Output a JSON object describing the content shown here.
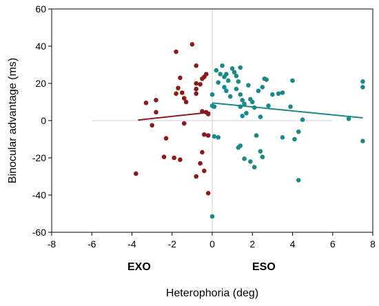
{
  "chart_data": {
    "type": "scatter",
    "title": "",
    "xlabel": "Heterophoria (deg)",
    "ylabel": "Binocular advantage (ms)",
    "xlim": [
      -8,
      8
    ],
    "ylim": [
      -60,
      60
    ],
    "xticks": [
      "-8",
      "-6",
      "-4",
      "-2",
      "0",
      "2",
      "4",
      "6",
      "8"
    ],
    "yticks": [
      "60",
      "40",
      "20",
      "0",
      "-20",
      "-40",
      "-60"
    ],
    "annotations": [
      "EXO",
      "ESO"
    ],
    "grid": false,
    "series": [
      {
        "group": "EXO",
        "color": "#8b1a1a",
        "points": [
          [
            -3.8,
            -28.5
          ],
          [
            -3.3,
            9.5
          ],
          [
            -3.0,
            -2.5
          ],
          [
            -2.8,
            11.0
          ],
          [
            -2.8,
            4.5
          ],
          [
            -2.3,
            -9.5
          ],
          [
            -2.4,
            -19.5
          ],
          [
            -1.9,
            -20.0
          ],
          [
            -1.6,
            -21.0
          ],
          [
            -1.4,
            -1.5
          ],
          [
            -1.8,
            37.0
          ],
          [
            -1.7,
            17.5
          ],
          [
            -1.8,
            14.5
          ],
          [
            -1.6,
            23.0
          ],
          [
            -1.5,
            15.0
          ],
          [
            -1.4,
            12.0
          ],
          [
            -1.3,
            10.0
          ],
          [
            -1.0,
            41.0
          ],
          [
            -0.8,
            29.5
          ],
          [
            -0.8,
            20.0
          ],
          [
            -0.8,
            17.0
          ],
          [
            -0.8,
            14.5
          ],
          [
            -0.6,
            19.5
          ],
          [
            -0.5,
            22.5
          ],
          [
            -0.4,
            23.5
          ],
          [
            -0.3,
            25.0
          ],
          [
            -0.5,
            5.0
          ],
          [
            -0.3,
            4.5
          ],
          [
            -0.2,
            3.5
          ],
          [
            -0.4,
            -7.5
          ],
          [
            -0.2,
            -8.0
          ],
          [
            -0.5,
            -17.0
          ],
          [
            -0.6,
            -23.0
          ],
          [
            -0.4,
            -27.0
          ],
          [
            -0.8,
            -30.0
          ],
          [
            -0.2,
            -39.0
          ]
        ],
        "trend": [
          [
            -3.7,
            0.3
          ],
          [
            -0.1,
            4.5
          ]
        ]
      },
      {
        "group": "ESO",
        "color": "#1a8a88",
        "points": [
          [
            0.0,
            8.0
          ],
          [
            0.1,
            7.5
          ],
          [
            0.0,
            14.0
          ],
          [
            0.2,
            27.0
          ],
          [
            0.4,
            25.0
          ],
          [
            0.3,
            20.5
          ],
          [
            0.5,
            29.5
          ],
          [
            0.6,
            23.5
          ],
          [
            0.7,
            25.0
          ],
          [
            0.6,
            18.0
          ],
          [
            0.8,
            21.5
          ],
          [
            0.7,
            16.0
          ],
          [
            0.9,
            13.0
          ],
          [
            1.0,
            28.0
          ],
          [
            1.1,
            26.0
          ],
          [
            1.2,
            24.0
          ],
          [
            1.3,
            21.0
          ],
          [
            1.4,
            28.5
          ],
          [
            1.2,
            17.0
          ],
          [
            1.4,
            14.0
          ],
          [
            1.5,
            11.0
          ],
          [
            1.4,
            7.5
          ],
          [
            1.6,
            9.0
          ],
          [
            1.7,
            4.0
          ],
          [
            1.5,
            2.5
          ],
          [
            1.8,
            19.0
          ],
          [
            1.9,
            11.5
          ],
          [
            2.0,
            10.0
          ],
          [
            2.1,
            7.0
          ],
          [
            2.3,
            16.0
          ],
          [
            2.4,
            2.0
          ],
          [
            2.5,
            18.0
          ],
          [
            2.6,
            22.5
          ],
          [
            2.7,
            22.0
          ],
          [
            2.8,
            8.0
          ],
          [
            3.0,
            14.0
          ],
          [
            3.3,
            14.5
          ],
          [
            3.5,
            15.0
          ],
          [
            3.9,
            7.5
          ],
          [
            4.0,
            21.5
          ],
          [
            4.3,
            -6.0
          ],
          [
            4.1,
            -10.0
          ],
          [
            4.5,
            0.5
          ],
          [
            3.5,
            -9.0
          ],
          [
            4.3,
            -32.0
          ],
          [
            1.4,
            -13.5
          ],
          [
            1.3,
            -14.5
          ],
          [
            1.6,
            -20.5
          ],
          [
            1.9,
            -22.0
          ],
          [
            2.1,
            -25.0
          ],
          [
            2.4,
            -16.5
          ],
          [
            2.5,
            -19.5
          ],
          [
            2.2,
            -8.0
          ],
          [
            0.1,
            -8.5
          ],
          [
            0.3,
            -9.0
          ],
          [
            0.0,
            -51.5
          ],
          [
            6.8,
            1.0
          ],
          [
            7.5,
            21.0
          ],
          [
            7.5,
            18.0
          ],
          [
            7.5,
            -11.0
          ]
        ],
        "trend": [
          [
            0.0,
            9.5
          ],
          [
            7.5,
            1.5
          ]
        ]
      }
    ]
  }
}
